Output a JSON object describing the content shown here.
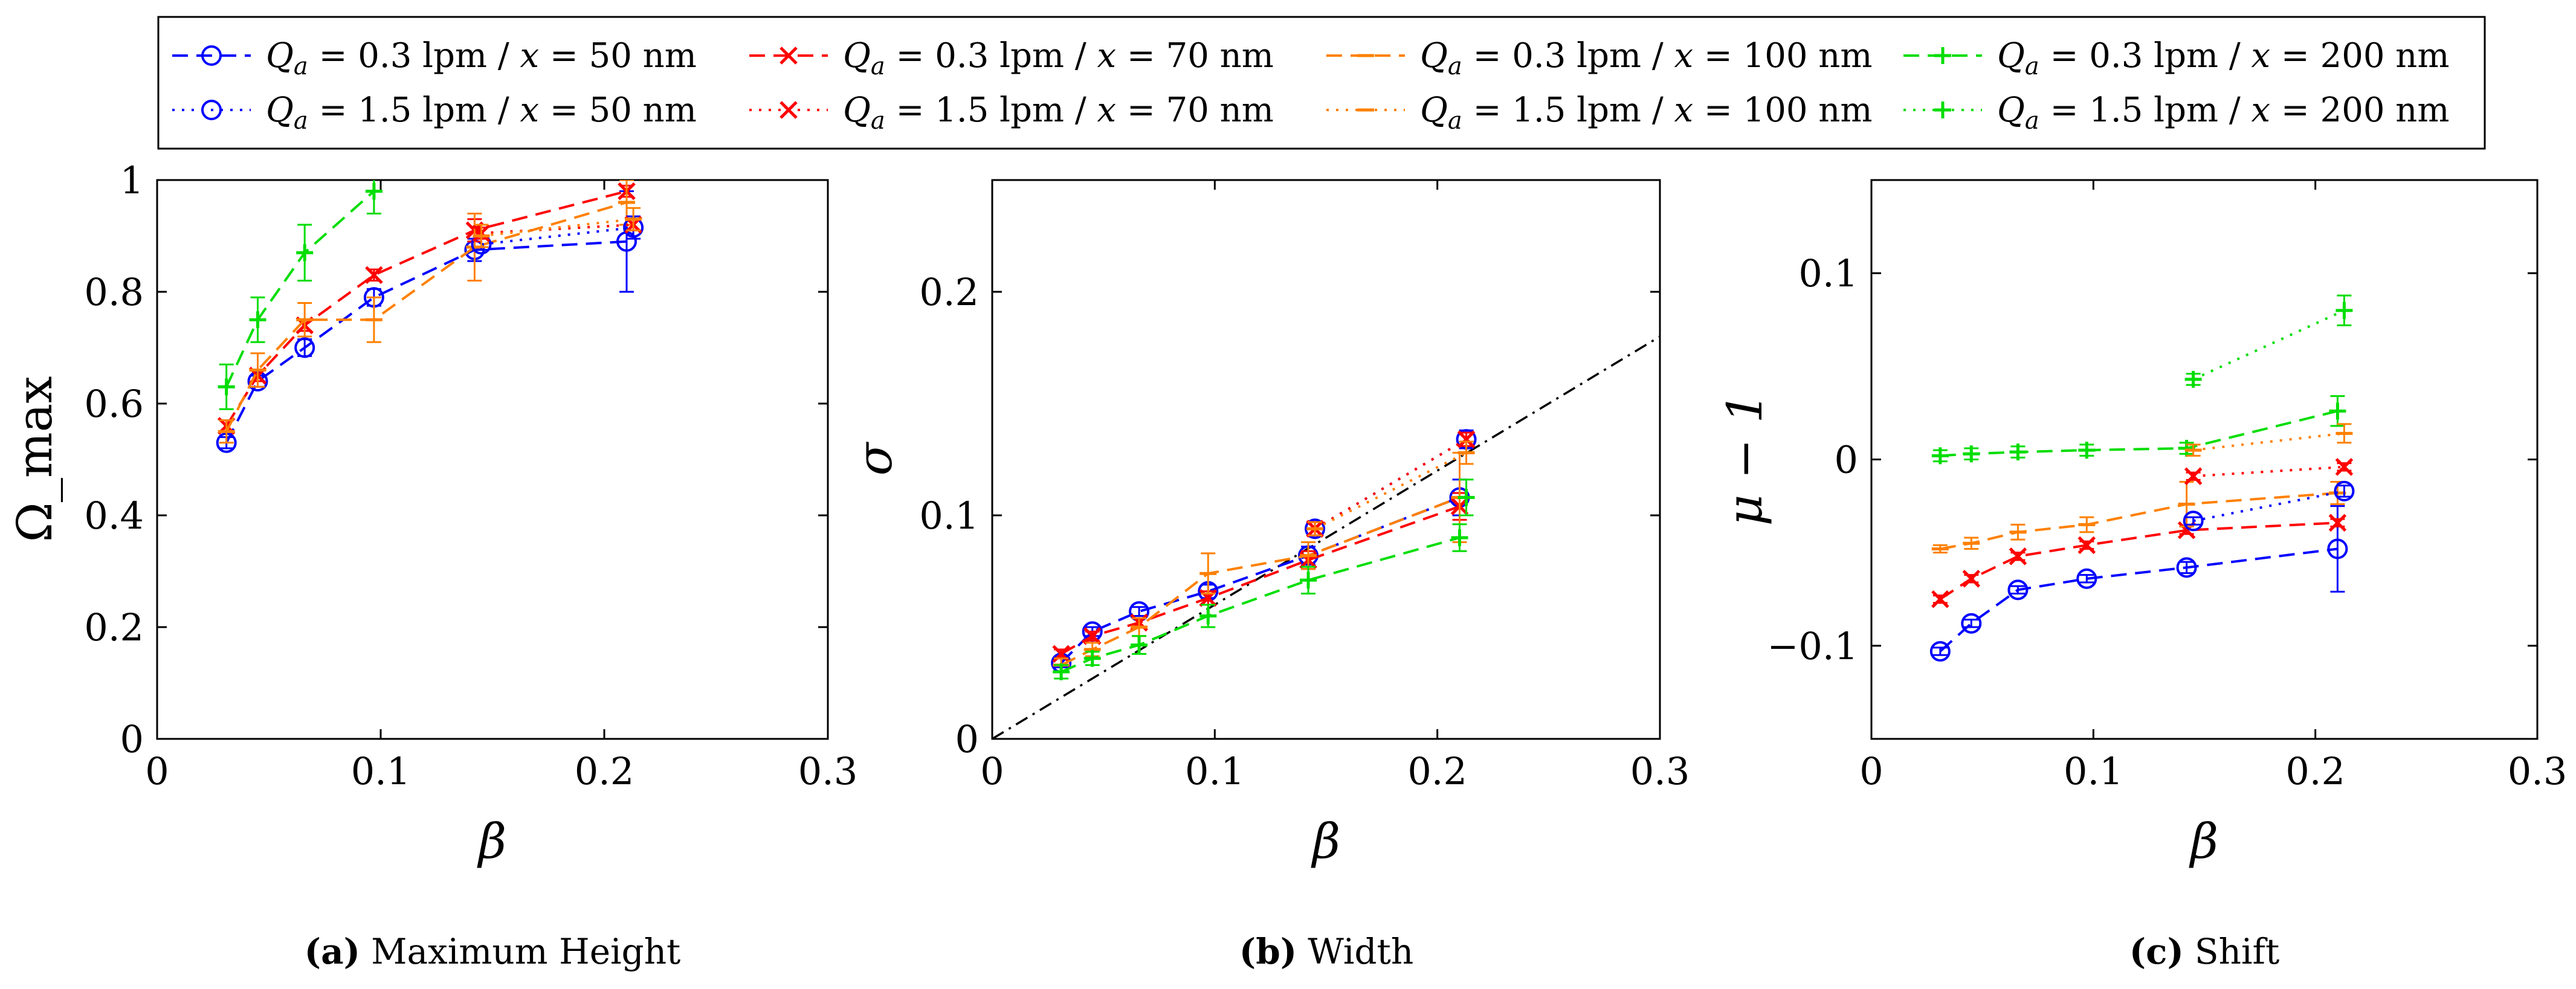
{
  "colors": {
    "x50": "#0000ff",
    "x70": "#ff0000",
    "x100": "#ff8000",
    "x200": "#00dd00",
    "diagonal": "#000000"
  },
  "legend": [
    {
      "label": "Q_a = 0.3 lpm / x = 50 nm",
      "color": "x50",
      "marker": "o",
      "style": "dashed"
    },
    {
      "label": "Q_a = 0.3 lpm / x = 70 nm",
      "color": "x70",
      "marker": "x",
      "style": "dashed"
    },
    {
      "label": "Q_a = 0.3 lpm / x = 100 nm",
      "color": "x100",
      "marker": "-",
      "style": "dashed"
    },
    {
      "label": "Q_a = 0.3 lpm / x = 200 nm",
      "color": "x200",
      "marker": "+",
      "style": "dashed"
    },
    {
      "label": "Q_a = 1.5 lpm / x = 50 nm",
      "color": "x50",
      "marker": "o",
      "style": "dotted"
    },
    {
      "label": "Q_a = 1.5 lpm / x = 70 nm",
      "color": "x70",
      "marker": "x",
      "style": "dotted"
    },
    {
      "label": "Q_a = 1.5 lpm / x = 100 nm",
      "color": "x100",
      "marker": "-",
      "style": "dotted"
    },
    {
      "label": "Q_a = 1.5 lpm / x = 200 nm",
      "color": "x200",
      "marker": "+",
      "style": "dotted"
    }
  ],
  "chart_data": [
    {
      "type": "line",
      "id": "a",
      "title": "Maximum Height",
      "caption_letter": "(a)",
      "caption_text": "Maximum Height",
      "xlabel": "β",
      "ylabel": "Ω_max",
      "xlim": [
        0,
        0.3
      ],
      "ylim": [
        0,
        1
      ],
      "xticks": [
        0,
        0.1,
        0.2,
        0.3
      ],
      "xtick_labels": [
        "0",
        "0.1",
        "0.2",
        "0.3"
      ],
      "yticks": [
        0,
        0.2,
        0.4,
        0.6,
        0.8,
        1
      ],
      "ytick_labels": [
        "0",
        "0.2",
        "0.4",
        "0.6",
        "0.8",
        "1"
      ],
      "series": [
        {
          "name": "Q_a = 0.3 lpm / x = 50 nm",
          "color": "x50",
          "marker": "o",
          "style": "dashed",
          "x": [
            0.031,
            0.045,
            0.066,
            0.097,
            0.142,
            0.21
          ],
          "y": [
            0.53,
            0.64,
            0.7,
            0.79,
            0.875,
            0.89
          ],
          "err": [
            0.01,
            0.01,
            0.015,
            0.015,
            0.02,
            0.09
          ]
        },
        {
          "name": "Q_a = 0.3 lpm / x = 70 nm",
          "color": "x70",
          "marker": "x",
          "style": "dashed",
          "x": [
            0.031,
            0.045,
            0.066,
            0.097,
            0.142,
            0.21
          ],
          "y": [
            0.56,
            0.65,
            0.74,
            0.83,
            0.91,
            0.98
          ],
          "err": [
            0.01,
            0.01,
            0.01,
            0.01,
            0.02,
            0.01
          ]
        },
        {
          "name": "Q_a = 0.3 lpm / x = 100 nm",
          "color": "x100",
          "marker": "-",
          "style": "dashed",
          "x": [
            0.031,
            0.045,
            0.066,
            0.097,
            0.142,
            0.21
          ],
          "y": [
            0.55,
            0.66,
            0.75,
            0.75,
            0.88,
            0.96
          ],
          "err": [
            0.02,
            0.03,
            0.03,
            0.04,
            0.06,
            0.04
          ]
        },
        {
          "name": "Q_a = 0.3 lpm / x = 200 nm",
          "color": "x200",
          "marker": "+",
          "style": "dashed",
          "x": [
            0.031,
            0.045,
            0.066,
            0.097
          ],
          "y": [
            0.63,
            0.75,
            0.87,
            0.98
          ],
          "err": [
            0.04,
            0.04,
            0.05,
            0.04
          ]
        },
        {
          "name": "Q_a = 1.5 lpm / x = 50 nm",
          "color": "x50",
          "marker": "o",
          "style": "dotted",
          "x": [
            0.145,
            0.213
          ],
          "y": [
            0.885,
            0.915
          ],
          "err": [
            0.01,
            0.02
          ]
        },
        {
          "name": "Q_a = 1.5 lpm / x = 70 nm",
          "color": "x70",
          "marker": "x",
          "style": "dotted",
          "x": [
            0.145,
            0.213
          ],
          "y": [
            0.905,
            0.92
          ],
          "err": [
            0.01,
            0.01
          ]
        },
        {
          "name": "Q_a = 1.5 lpm / x = 100 nm",
          "color": "x100",
          "marker": "-",
          "style": "dotted",
          "x": [
            0.145,
            0.213
          ],
          "y": [
            0.9,
            0.93
          ],
          "err": [
            0.02,
            0.02
          ]
        },
        {
          "name": "Q_a = 1.5 lpm / x = 200 nm",
          "color": "x200",
          "marker": "+",
          "style": "dotted",
          "x": [],
          "y": [],
          "err": []
        }
      ]
    },
    {
      "type": "line",
      "id": "b",
      "title": "Width",
      "caption_letter": "(b)",
      "caption_text": "Width",
      "xlabel": "β",
      "ylabel": "σ",
      "xlim": [
        0,
        0.3
      ],
      "ylim": [
        0,
        0.25
      ],
      "xticks": [
        0,
        0.1,
        0.2,
        0.3
      ],
      "xtick_labels": [
        "0",
        "0.1",
        "0.2",
        "0.3"
      ],
      "yticks": [
        0,
        0.1,
        0.2
      ],
      "ytick_labels": [
        "0",
        "0.1",
        "0.2"
      ],
      "reference_line": {
        "x": [
          0,
          0.3
        ],
        "y": [
          0,
          0.18
        ],
        "style": "dashdot",
        "color": "diagonal"
      },
      "series": [
        {
          "name": "Q_a = 0.3 lpm / x = 50 nm",
          "color": "x50",
          "marker": "o",
          "style": "dashed",
          "x": [
            0.031,
            0.045,
            0.066,
            0.097,
            0.142,
            0.21
          ],
          "y": [
            0.034,
            0.048,
            0.057,
            0.066,
            0.082,
            0.108
          ],
          "err": [
            0.002,
            0.002,
            0.002,
            0.003,
            0.004,
            0.008
          ]
        },
        {
          "name": "Q_a = 0.3 lpm / x = 70 nm",
          "color": "x70",
          "marker": "x",
          "style": "dashed",
          "x": [
            0.031,
            0.045,
            0.066,
            0.097,
            0.142,
            0.21
          ],
          "y": [
            0.038,
            0.046,
            0.052,
            0.063,
            0.08,
            0.104
          ],
          "err": [
            0.002,
            0.002,
            0.002,
            0.003,
            0.004,
            0.006
          ]
        },
        {
          "name": "Q_a = 0.3 lpm / x = 100 nm",
          "color": "x100",
          "marker": "-",
          "style": "dashed",
          "x": [
            0.031,
            0.045,
            0.066,
            0.097,
            0.142,
            0.21
          ],
          "y": [
            0.033,
            0.04,
            0.05,
            0.074,
            0.082,
            0.108
          ],
          "err": [
            0.003,
            0.003,
            0.004,
            0.009,
            0.006,
            0.02
          ]
        },
        {
          "name": "Q_a = 0.3 lpm / x = 200 nm",
          "color": "x200",
          "marker": "+",
          "style": "dashed",
          "x": [
            0.031,
            0.045,
            0.066,
            0.097,
            0.142,
            0.21
          ],
          "y": [
            0.03,
            0.036,
            0.042,
            0.055,
            0.071,
            0.09
          ],
          "err": [
            0.003,
            0.003,
            0.004,
            0.005,
            0.006,
            0.006
          ]
        },
        {
          "name": "Q_a = 1.5 lpm / x = 50 nm",
          "color": "x50",
          "marker": "o",
          "style": "dotted",
          "x": [
            0.145,
            0.213
          ],
          "y": [
            0.094,
            0.134
          ],
          "err": [
            0.003,
            0.004
          ]
        },
        {
          "name": "Q_a = 1.5 lpm / x = 70 nm",
          "color": "x70",
          "marker": "x",
          "style": "dotted",
          "x": [
            0.145,
            0.213
          ],
          "y": [
            0.094,
            0.134
          ],
          "err": [
            0.003,
            0.003
          ]
        },
        {
          "name": "Q_a = 1.5 lpm / x = 100 nm",
          "color": "x100",
          "marker": "-",
          "style": "dotted",
          "x": [
            0.145,
            0.213
          ],
          "y": [
            0.094,
            0.128
          ],
          "err": [
            0.003,
            0.005
          ]
        },
        {
          "name": "Q_a = 1.5 lpm / x = 200 nm",
          "color": "x200",
          "marker": "+",
          "style": "dotted",
          "x": [
            0.213
          ],
          "y": [
            0.108
          ],
          "err": [
            0.008
          ]
        }
      ]
    },
    {
      "type": "line",
      "id": "c",
      "title": "Shift",
      "caption_letter": "(c)",
      "caption_text": "Shift",
      "xlabel": "β",
      "ylabel": "μ − 1",
      "xlim": [
        0,
        0.3
      ],
      "ylim": [
        -0.15,
        0.15
      ],
      "xticks": [
        0,
        0.1,
        0.2,
        0.3
      ],
      "xtick_labels": [
        "0",
        "0.1",
        "0.2",
        "0.3"
      ],
      "yticks": [
        -0.1,
        0,
        0.1
      ],
      "ytick_labels": [
        "−0.1",
        "0",
        "0.1"
      ],
      "series": [
        {
          "name": "Q_a = 0.3 lpm / x = 50 nm",
          "color": "x50",
          "marker": "o",
          "style": "dashed",
          "x": [
            0.031,
            0.045,
            0.066,
            0.097,
            0.142,
            0.21
          ],
          "y": [
            -0.103,
            -0.088,
            -0.07,
            -0.064,
            -0.058,
            -0.048
          ],
          "err": [
            0.002,
            0.002,
            0.002,
            0.002,
            0.003,
            0.023
          ]
        },
        {
          "name": "Q_a = 0.3 lpm / x = 70 nm",
          "color": "x70",
          "marker": "x",
          "style": "dashed",
          "x": [
            0.031,
            0.045,
            0.066,
            0.097,
            0.142,
            0.21
          ],
          "y": [
            -0.075,
            -0.064,
            -0.052,
            -0.046,
            -0.038,
            -0.034
          ],
          "err": [
            0.002,
            0.002,
            0.002,
            0.002,
            0.002,
            0.002
          ]
        },
        {
          "name": "Q_a = 0.3 lpm / x = 100 nm",
          "color": "x100",
          "marker": "-",
          "style": "dashed",
          "x": [
            0.031,
            0.045,
            0.066,
            0.097,
            0.142,
            0.21
          ],
          "y": [
            -0.048,
            -0.045,
            -0.039,
            -0.035,
            -0.024,
            -0.018
          ],
          "err": [
            0.002,
            0.003,
            0.004,
            0.004,
            0.012,
            0.006
          ]
        },
        {
          "name": "Q_a = 0.3 lpm / x = 200 nm",
          "color": "x200",
          "marker": "+",
          "style": "dashed",
          "x": [
            0.031,
            0.045,
            0.066,
            0.097,
            0.142,
            0.21
          ],
          "y": [
            0.002,
            0.003,
            0.004,
            0.005,
            0.006,
            0.026
          ],
          "err": [
            0.003,
            0.003,
            0.003,
            0.003,
            0.003,
            0.008
          ]
        },
        {
          "name": "Q_a = 1.5 lpm / x = 50 nm",
          "color": "x50",
          "marker": "o",
          "style": "dotted",
          "x": [
            0.145,
            0.213
          ],
          "y": [
            -0.033,
            -0.017
          ],
          "err": [
            0.002,
            0.003
          ]
        },
        {
          "name": "Q_a = 1.5 lpm / x = 70 nm",
          "color": "x70",
          "marker": "x",
          "style": "dotted",
          "x": [
            0.145,
            0.213
          ],
          "y": [
            -0.009,
            -0.004
          ],
          "err": [
            0.002,
            0.002
          ]
        },
        {
          "name": "Q_a = 1.5 lpm / x = 100 nm",
          "color": "x100",
          "marker": "-",
          "style": "dotted",
          "x": [
            0.145,
            0.213
          ],
          "y": [
            0.005,
            0.014
          ],
          "err": [
            0.003,
            0.005
          ]
        },
        {
          "name": "Q_a = 1.5 lpm / x = 200 nm",
          "color": "x200",
          "marker": "+",
          "style": "dotted",
          "x": [
            0.145,
            0.213
          ],
          "y": [
            0.043,
            0.08
          ],
          "err": [
            0.003,
            0.008
          ]
        }
      ]
    }
  ]
}
